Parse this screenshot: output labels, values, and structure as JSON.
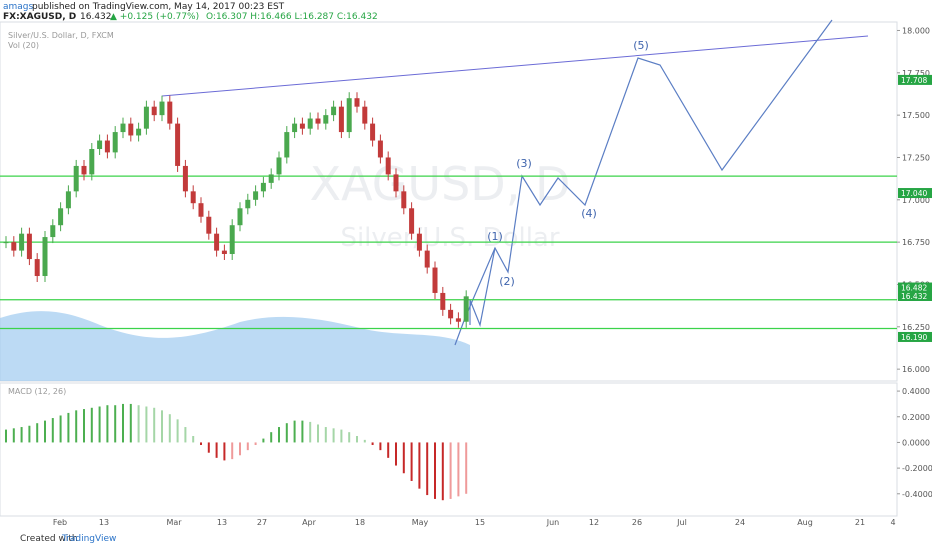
{
  "header": {
    "author": "amags",
    "published": "published on TradingView.com, May 14, 2017 00:23 EST",
    "symbol": "FX:XAGUSD, D",
    "last": "16.432",
    "change": "▲ +0.125 (+0.77%)",
    "ohlc": "O:16.307 H:16.466 L:16.287 C:16.432"
  },
  "legend": {
    "main": "Silver/U.S. Dollar, D, FXCM",
    "volume": "Vol (20)",
    "macd": "MACD (12, 26)"
  },
  "watermark": {
    "symbol": "XAGUSD, D",
    "name": "Silver/U.S. Dollar"
  },
  "waves": [
    "(1)",
    "(2)",
    "(3)",
    "(4)",
    "(5)"
  ],
  "price_axis": {
    "ylim": [
      15.93,
      18.05
    ],
    "yticks": [
      {
        "value": 18.0,
        "label": "18.000"
      },
      {
        "value": 17.75,
        "label": "17.750"
      },
      {
        "value": 17.5,
        "label": "17.500"
      },
      {
        "value": 17.25,
        "label": "17.250"
      },
      {
        "value": 17.0,
        "label": "17.000"
      },
      {
        "value": 16.75,
        "label": "16.750"
      },
      {
        "value": 16.5,
        "label": "16.500"
      },
      {
        "value": 16.25,
        "label": "16.250"
      },
      {
        "value": 16.0,
        "label": "16.000"
      }
    ],
    "marked": [
      {
        "value": 17.708,
        "label": "17.708"
      },
      {
        "value": 17.04,
        "label": "17.040"
      },
      {
        "value": 16.482,
        "label": "16.482"
      },
      {
        "value": 16.432,
        "label": "16.432"
      },
      {
        "value": 16.19,
        "label": "16.190"
      }
    ],
    "levels": [
      17.14,
      16.75,
      16.41,
      16.24
    ]
  },
  "candles": {
    "closes": [
      16.75,
      16.7,
      16.8,
      16.65,
      16.55,
      16.78,
      16.85,
      16.95,
      17.05,
      17.2,
      17.15,
      17.3,
      17.35,
      17.28,
      17.4,
      17.45,
      17.38,
      17.42,
      17.55,
      17.5,
      17.58,
      17.45,
      17.2,
      17.05,
      16.98,
      16.9,
      16.8,
      16.7,
      16.68,
      16.85,
      16.95,
      17.0,
      17.05,
      17.1,
      17.15,
      17.25,
      17.4,
      17.45,
      17.42,
      17.48,
      17.45,
      17.5,
      17.55,
      17.4,
      17.6,
      17.55,
      17.45,
      17.35,
      17.25,
      17.15,
      17.05,
      16.95,
      16.8,
      16.7,
      16.6,
      16.45,
      16.35,
      16.3,
      16.28,
      16.43
    ]
  },
  "macd": {
    "ylim": [
      -0.573,
      0.463
    ],
    "yticks": [
      {
        "value": 0.4,
        "label": "0.4000"
      },
      {
        "value": 0.2,
        "label": "0.2000"
      },
      {
        "value": 0,
        "label": "0.0000"
      },
      {
        "value": -0.2,
        "label": "-0.2000"
      },
      {
        "value": -0.4,
        "label": "-0.4000"
      }
    ],
    "values": [
      0.1,
      0.11,
      0.12,
      0.13,
      0.15,
      0.17,
      0.19,
      0.21,
      0.23,
      0.25,
      0.26,
      0.27,
      0.28,
      0.29,
      0.29,
      0.3,
      0.3,
      0.29,
      0.28,
      0.27,
      0.25,
      0.22,
      0.18,
      0.12,
      0.05,
      -0.02,
      -0.08,
      -0.12,
      -0.14,
      -0.13,
      -0.1,
      -0.06,
      -0.02,
      0.03,
      0.08,
      0.12,
      0.15,
      0.17,
      0.17,
      0.16,
      0.14,
      0.12,
      0.11,
      0.1,
      0.08,
      0.05,
      0.02,
      -0.02,
      -0.06,
      -0.12,
      -0.18,
      -0.24,
      -0.3,
      -0.36,
      -0.41,
      -0.44,
      -0.45,
      -0.44,
      -0.42,
      -0.4
    ]
  },
  "date_axis": [
    "Feb",
    "13",
    "Mar",
    "13",
    "27",
    "Apr",
    "18",
    "May",
    "15",
    "Jun",
    "12",
    "26",
    "Jul",
    "24",
    "Aug",
    "21",
    "4"
  ],
  "footer": {
    "created": "Created with",
    "brand": "TradingView"
  }
}
